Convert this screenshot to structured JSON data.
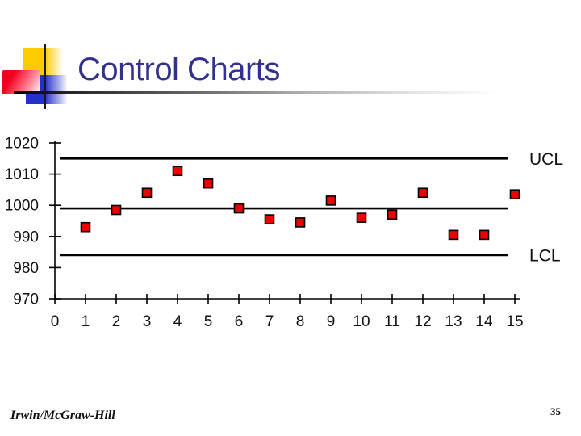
{
  "slide": {
    "title": "Control Charts",
    "footer_left": "Irwin/McGraw-Hill",
    "page_number": "35"
  },
  "colors": {
    "title": "#32328e",
    "marker_fill": "#ee0000",
    "marker_stroke": "#000000",
    "line_color": "#000000",
    "logo_yellow": "#ffcb00",
    "logo_blue": "#2431c8",
    "logo_red": "#f30021"
  },
  "chart_data": {
    "type": "scatter",
    "title": "",
    "xlabel": "",
    "ylabel": "",
    "xlim": [
      0,
      15
    ],
    "ylim": [
      970,
      1020
    ],
    "xticks": [
      0,
      1,
      2,
      3,
      4,
      5,
      6,
      7,
      8,
      9,
      10,
      11,
      12,
      13,
      14,
      15
    ],
    "yticks": [
      970,
      980,
      990,
      1000,
      1010,
      1020
    ],
    "grid": false,
    "x": [
      1,
      2,
      3,
      4,
      5,
      6,
      7,
      8,
      9,
      10,
      11,
      12,
      13,
      14,
      15
    ],
    "values": [
      993,
      998.5,
      1004,
      1011,
      1007,
      999,
      995.5,
      994.5,
      1001.5,
      996,
      997,
      1004,
      990.5,
      990.5,
      1003.5
    ],
    "control_lines": [
      {
        "name": "ucl",
        "label": "UCL",
        "value": 1015
      },
      {
        "name": "center",
        "label": "",
        "value": 999
      },
      {
        "name": "lcl",
        "label": "LCL",
        "value": 984
      }
    ],
    "marker": {
      "shape": "square",
      "size": 11,
      "fill": "#ee0000",
      "stroke": "#000000"
    },
    "legend": "none"
  }
}
